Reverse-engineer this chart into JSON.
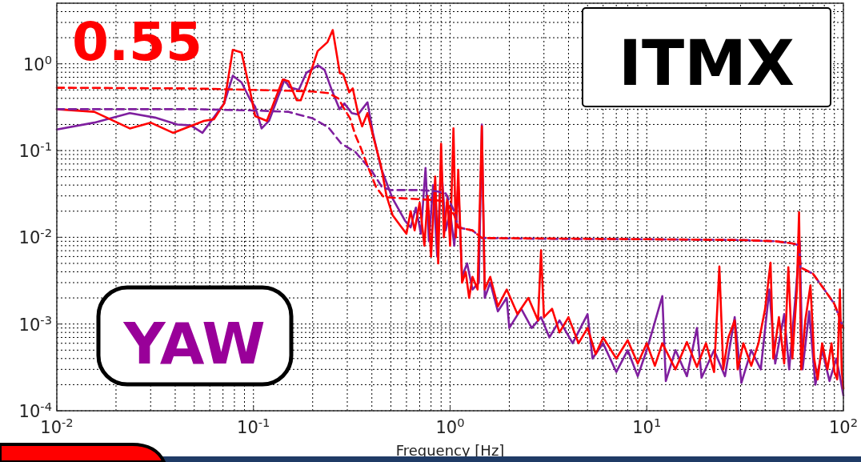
{
  "chart_data": {
    "type": "line",
    "xlabel": "Frequency [Hz]",
    "log": "xy",
    "grid": true,
    "xlim": [
      0.01,
      100
    ],
    "ylim": [
      0.0001,
      5
    ],
    "xticks": [
      {
        "value": 0.01,
        "label": "10$^{-2}$"
      },
      {
        "value": 0.1,
        "label": "10$^{-1}$"
      },
      {
        "value": 1,
        "label": "10$^{0}$"
      },
      {
        "value": 10,
        "label": "10$^{1}$"
      },
      {
        "value": 100,
        "label": "10$^{2}$"
      }
    ],
    "yticks": [
      {
        "value": 0.0001,
        "label": "10$^{-4}$"
      },
      {
        "value": 0.001,
        "label": "10$^{-3}$"
      },
      {
        "value": 0.01,
        "label": "10$^{-2}$"
      },
      {
        "value": 0.1,
        "label": "10$^{-1}$"
      },
      {
        "value": 1,
        "label": "10$^{0}$"
      }
    ],
    "annotations": [
      "0.55",
      "ITMX",
      "YAW"
    ],
    "series": [
      {
        "color": "#7f1f9f",
        "line_style": "solid",
        "x": [
          0.01,
          0.0155,
          0.0235,
          0.0316,
          0.041,
          0.048,
          0.055,
          0.071,
          0.0785,
          0.087,
          0.096,
          0.102,
          0.11,
          0.12,
          0.144,
          0.152,
          0.17,
          0.186,
          0.213,
          0.23,
          0.25,
          0.274,
          0.29,
          0.316,
          0.34,
          0.38,
          0.405,
          0.445,
          0.51,
          0.59,
          0.63,
          0.67,
          0.71,
          0.75,
          0.78,
          0.82,
          0.86,
          0.9,
          0.95,
          1.0,
          1.05,
          1.1,
          1.15,
          1.22,
          1.3,
          1.4,
          1.45,
          1.5,
          1.6,
          1.75,
          1.94,
          2.0,
          2.3,
          2.6,
          2.9,
          3.2,
          3.6,
          4.2,
          5.0,
          5.3,
          6.0,
          7.0,
          8.0,
          9.0,
          10,
          12,
          12.5,
          14,
          16,
          18,
          19,
          22,
          25,
          28,
          30.3,
          34,
          38,
          42,
          45,
          50,
          53,
          57,
          60,
          62,
          67,
          72,
          78,
          85,
          92,
          96,
          100
        ],
        "values": [
          0.175,
          0.21,
          0.27,
          0.24,
          0.2,
          0.195,
          0.16,
          0.35,
          0.73,
          0.61,
          0.39,
          0.32,
          0.18,
          0.22,
          0.66,
          0.54,
          0.5,
          0.79,
          0.96,
          0.85,
          0.5,
          0.3,
          0.35,
          0.27,
          0.26,
          0.36,
          0.16,
          0.063,
          0.028,
          0.0155,
          0.013,
          0.022,
          0.011,
          0.063,
          0.009,
          0.04,
          0.006,
          0.07,
          0.012,
          0.02,
          0.008,
          0.04,
          0.0035,
          0.005,
          0.0025,
          0.003,
          0.2,
          0.002,
          0.003,
          0.0014,
          0.002,
          0.0009,
          0.0015,
          0.0009,
          0.0012,
          0.0007,
          0.0011,
          0.0006,
          0.0013,
          0.0004,
          0.0006,
          0.00028,
          0.0005,
          0.00025,
          0.0005,
          0.0021,
          0.00022,
          0.0005,
          0.00025,
          0.0009,
          0.00024,
          0.0005,
          0.00025,
          0.0012,
          0.00021,
          0.0005,
          0.0003,
          0.0025,
          0.00035,
          0.0013,
          0.0003,
          0.002,
          0.009,
          0.0003,
          0.0014,
          0.0002,
          0.0005,
          0.00022,
          0.0004,
          0.00025,
          0.00015
        ]
      },
      {
        "color": "#ff0000",
        "line_style": "solid",
        "x": [
          0.01,
          0.0155,
          0.0235,
          0.03,
          0.039,
          0.056,
          0.063,
          0.071,
          0.0785,
          0.087,
          0.096,
          0.102,
          0.117,
          0.141,
          0.151,
          0.166,
          0.174,
          0.187,
          0.212,
          0.238,
          0.253,
          0.275,
          0.286,
          0.307,
          0.32,
          0.34,
          0.357,
          0.38,
          0.405,
          0.445,
          0.475,
          0.51,
          0.56,
          0.6,
          0.63,
          0.66,
          0.7,
          0.74,
          0.77,
          0.8,
          0.84,
          0.87,
          0.9,
          0.93,
          0.97,
          1.0,
          1.04,
          1.07,
          1.1,
          1.15,
          1.2,
          1.25,
          1.3,
          1.38,
          1.45,
          1.5,
          1.6,
          1.75,
          1.94,
          2.2,
          2.5,
          2.8,
          2.9,
          3.0,
          3.3,
          3.6,
          4.0,
          4.5,
          5.0,
          5.5,
          6.0,
          7.0,
          8.0,
          9.0,
          10,
          11,
          12,
          14,
          16,
          18,
          20,
          22,
          23.4,
          24.5,
          26,
          28,
          29,
          31,
          34,
          37,
          40,
          42.6,
          44,
          47,
          50,
          52.5,
          55,
          58,
          59.5,
          61,
          64,
          68,
          71,
          74,
          78,
          83,
          87,
          90,
          93,
          96,
          98,
          100
        ],
        "values": [
          0.3,
          0.28,
          0.18,
          0.21,
          0.16,
          0.22,
          0.23,
          0.35,
          1.45,
          1.35,
          0.49,
          0.25,
          0.22,
          0.66,
          0.63,
          0.38,
          0.38,
          0.59,
          1.4,
          1.78,
          2.45,
          0.78,
          0.76,
          0.47,
          0.52,
          0.27,
          0.19,
          0.27,
          0.15,
          0.067,
          0.03,
          0.018,
          0.0135,
          0.011,
          0.02,
          0.012,
          0.025,
          0.008,
          0.03,
          0.006,
          0.05,
          0.005,
          0.12,
          0.01,
          0.03,
          0.008,
          0.18,
          0.01,
          0.06,
          0.003,
          0.004,
          0.002,
          0.0035,
          0.0025,
          0.19,
          0.0025,
          0.0035,
          0.0016,
          0.0025,
          0.0013,
          0.002,
          0.0011,
          0.0071,
          0.0012,
          0.0015,
          0.0008,
          0.0012,
          0.0006,
          0.0009,
          0.00045,
          0.0007,
          0.0004,
          0.00065,
          0.00035,
          0.0006,
          0.00033,
          0.0006,
          0.0003,
          0.00062,
          0.00032,
          0.0006,
          0.00028,
          0.0046,
          0.0003,
          0.0007,
          0.0011,
          0.0003,
          0.0006,
          0.00033,
          0.0006,
          0.0015,
          0.0051,
          0.0004,
          0.0012,
          0.00035,
          0.0045,
          0.0004,
          0.0025,
          0.0195,
          0.0003,
          0.0011,
          0.0028,
          0.0004,
          0.00023,
          0.0006,
          0.0003,
          0.0006,
          0.00028,
          0.00023,
          0.0025,
          0.0003,
          0.00018
        ]
      },
      {
        "color": "#7f1f9f",
        "line_style": "dashed",
        "x": [
          0.01,
          0.05,
          0.1,
          0.15,
          0.2,
          0.24,
          0.28,
          0.33,
          0.4,
          0.45,
          0.5,
          0.7,
          0.85,
          0.95,
          1.05,
          1.1,
          1.3,
          1.45,
          3,
          10,
          30,
          45,
          55,
          59.5,
          60.5,
          70,
          80,
          90,
          100
        ],
        "values": [
          0.3,
          0.3,
          0.29,
          0.28,
          0.235,
          0.186,
          0.12,
          0.096,
          0.058,
          0.038,
          0.035,
          0.035,
          0.034,
          0.032,
          0.02,
          0.013,
          0.012,
          0.0098,
          0.0096,
          0.0095,
          0.0093,
          0.009,
          0.0085,
          0.0081,
          0.0045,
          0.0038,
          0.0025,
          0.0017,
          0.0009
        ]
      },
      {
        "color": "#ff0000",
        "line_style": "dashed",
        "x": [
          0.01,
          0.05,
          0.1,
          0.15,
          0.2,
          0.24,
          0.27,
          0.29,
          0.31,
          0.33,
          0.35,
          0.38,
          0.42,
          0.46,
          0.6,
          0.8,
          0.95,
          1.05,
          1.1,
          1.3,
          1.45,
          3,
          10,
          30,
          45,
          55,
          59.5,
          60.5,
          70,
          80,
          90,
          100
        ],
        "values": [
          0.53,
          0.52,
          0.5,
          0.49,
          0.48,
          0.46,
          0.4,
          0.3,
          0.235,
          0.15,
          0.11,
          0.067,
          0.038,
          0.029,
          0.028,
          0.027,
          0.026,
          0.018,
          0.013,
          0.012,
          0.0098,
          0.0097,
          0.0095,
          0.0093,
          0.009,
          0.0085,
          0.0082,
          0.0045,
          0.0038,
          0.0025,
          0.0017,
          0.0009
        ]
      }
    ]
  }
}
